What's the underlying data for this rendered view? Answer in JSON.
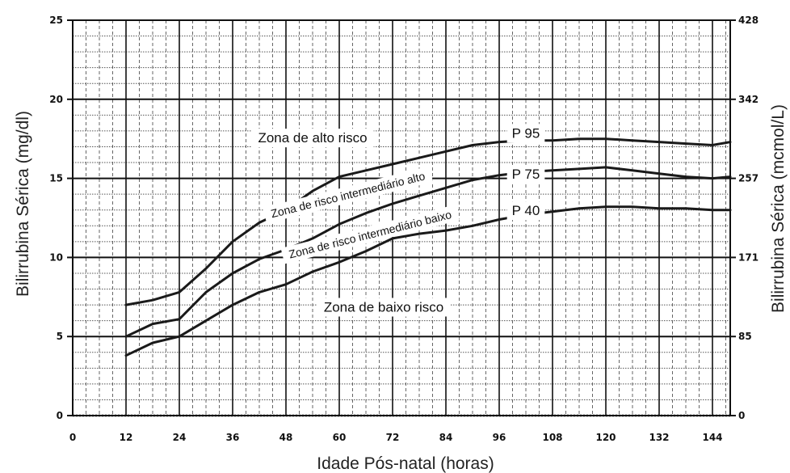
{
  "chart_data": {
    "type": "line",
    "xlabel": "Idade Pós-natal (horas)",
    "ylabel": "Bilirrubina Sérica (mg/dl)",
    "ylabel_right": "Bilirrubina Sérica (mcmol/L)",
    "xlim": [
      0,
      148
    ],
    "ylim": [
      0,
      25
    ],
    "x_ticks": [
      0,
      12,
      24,
      36,
      48,
      60,
      72,
      84,
      96,
      108,
      120,
      132,
      144
    ],
    "y_ticks": [
      0,
      5,
      10,
      15,
      20,
      25
    ],
    "y_ticks_right": [
      {
        "value": 0,
        "label": "0"
      },
      {
        "value": 5,
        "label": "85"
      },
      {
        "value": 10,
        "label": "171"
      },
      {
        "value": 15,
        "label": "257"
      },
      {
        "value": 20,
        "label": "342"
      },
      {
        "value": 25,
        "label": "428"
      }
    ],
    "grid": true,
    "series": [
      {
        "name": "P 95",
        "x": [
          12,
          18,
          24,
          30,
          36,
          42,
          48,
          54,
          60,
          66,
          72,
          78,
          84,
          90,
          96,
          102,
          108,
          114,
          120,
          126,
          132,
          138,
          144,
          148
        ],
        "values": [
          7.0,
          7.3,
          7.8,
          9.3,
          11.0,
          12.2,
          13.0,
          14.2,
          15.1,
          15.5,
          15.9,
          16.3,
          16.7,
          17.1,
          17.3,
          17.4,
          17.4,
          17.5,
          17.5,
          17.4,
          17.3,
          17.2,
          17.1,
          17.3
        ]
      },
      {
        "name": "P 75",
        "x": [
          12,
          18,
          24,
          30,
          36,
          42,
          48,
          54,
          60,
          66,
          72,
          78,
          84,
          90,
          96,
          102,
          108,
          114,
          120,
          126,
          132,
          138,
          144,
          148
        ],
        "values": [
          5.0,
          5.8,
          6.1,
          7.8,
          9.0,
          9.9,
          10.5,
          11.2,
          12.1,
          12.8,
          13.4,
          13.9,
          14.4,
          14.9,
          15.2,
          15.4,
          15.5,
          15.6,
          15.7,
          15.5,
          15.3,
          15.1,
          15.0,
          15.1
        ]
      },
      {
        "name": "P 40",
        "x": [
          12,
          18,
          24,
          30,
          36,
          42,
          48,
          54,
          60,
          66,
          72,
          78,
          84,
          90,
          96,
          102,
          108,
          114,
          120,
          126,
          132,
          138,
          144,
          148
        ],
        "values": [
          3.8,
          4.6,
          5.0,
          6.0,
          7.0,
          7.8,
          8.3,
          9.1,
          9.7,
          10.4,
          11.2,
          11.5,
          11.7,
          12.0,
          12.4,
          12.7,
          12.9,
          13.1,
          13.2,
          13.2,
          13.1,
          13.1,
          13.0,
          13.0
        ]
      }
    ],
    "zone_labels": [
      {
        "text": "Zona de alto risco",
        "x": 54,
        "y": 17.5,
        "rotate": 0
      },
      {
        "text": "Zona de risco intermediário alto",
        "x": 62,
        "y": 13.9,
        "rotate": -14
      },
      {
        "text": "Zona de risco intermediário baixo",
        "x": 67,
        "y": 11.4,
        "rotate": -14
      },
      {
        "text": "Zona de baixo risco",
        "x": 70,
        "y": 6.8,
        "rotate": 0
      }
    ],
    "percentile_labels": [
      {
        "text": "P 95",
        "x": 102,
        "y": 17.8
      },
      {
        "text": "P 75",
        "x": 102,
        "y": 15.2
      },
      {
        "text": "P 40",
        "x": 102,
        "y": 12.9
      }
    ]
  }
}
